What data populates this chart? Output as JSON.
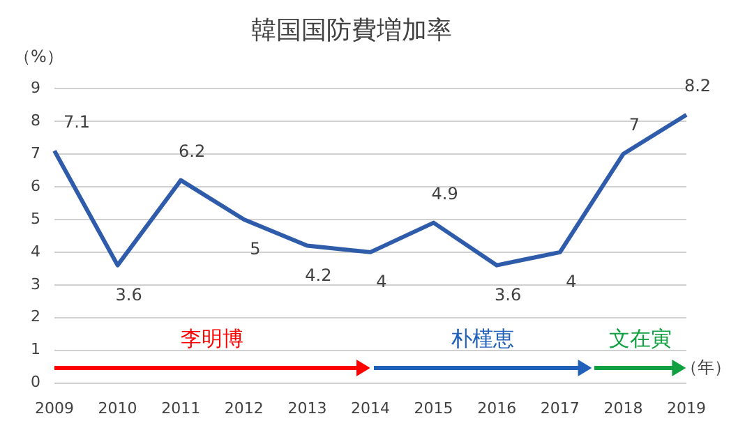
{
  "chart_data": {
    "type": "line",
    "title": "韓国国防費増加率",
    "ylabel": "（%）",
    "xlabel": "（年）",
    "categories": [
      "2009",
      "2010",
      "2011",
      "2012",
      "2013",
      "2014",
      "2015",
      "2016",
      "2017",
      "2018",
      "2019"
    ],
    "series": [
      {
        "color": "#2f5caa",
        "values": [
          7.1,
          3.6,
          6.2,
          5,
          4.2,
          4,
          4.9,
          3.6,
          4,
          7,
          8.2
        ]
      }
    ],
    "ylim": [
      0,
      9
    ],
    "yticks": [
      0,
      1,
      2,
      3,
      4,
      5,
      6,
      7,
      8,
      9
    ],
    "grid": "y",
    "legend": false,
    "marker": "none",
    "line_style": "solid",
    "data_labels": true,
    "annotations": [
      "李明博",
      "朴槿恵",
      "文在寅"
    ]
  }
}
